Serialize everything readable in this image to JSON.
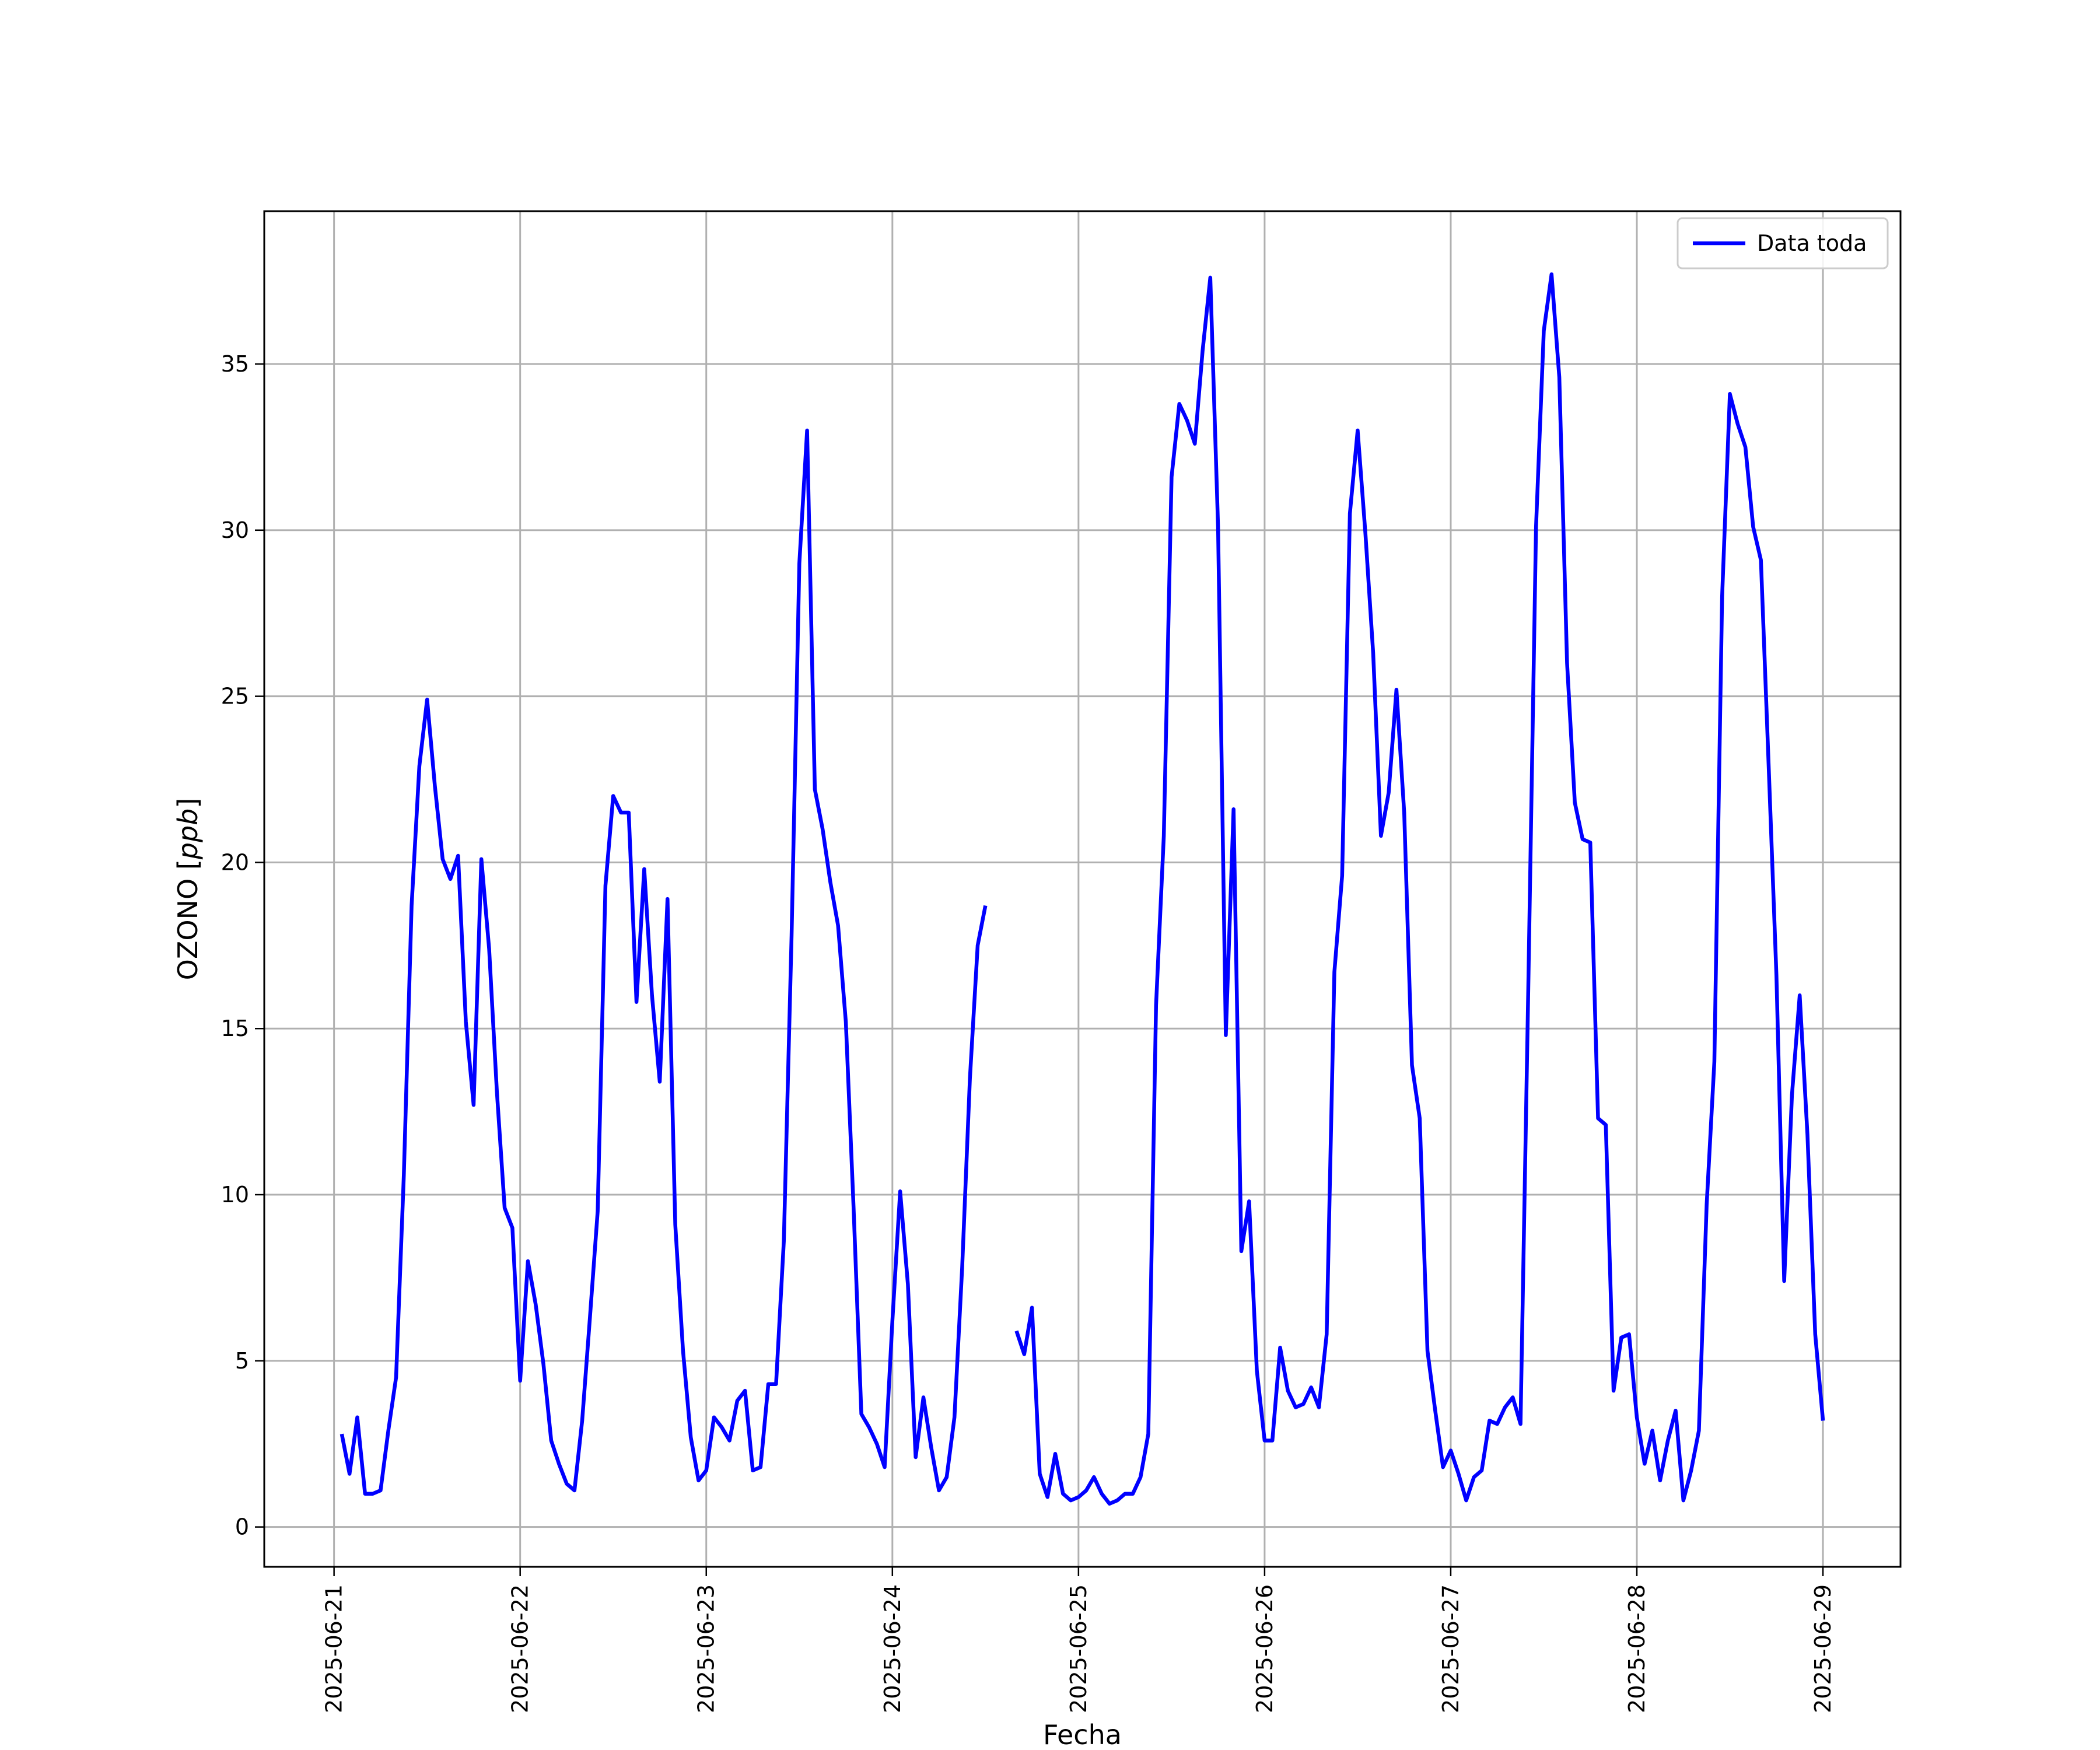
{
  "chart_data": {
    "type": "line",
    "title": "",
    "xlabel": "Fecha",
    "ylabel": "OZONO [ppb]",
    "ylabel_parts": {
      "prefix": "OZONO [",
      "unit": "ppb",
      "suffix": "]"
    },
    "x_ticks": [
      "2025-06-21",
      "2025-06-22",
      "2025-06-23",
      "2025-06-24",
      "2025-06-25",
      "2025-06-26",
      "2025-06-27",
      "2025-06-28",
      "2025-06-29"
    ],
    "y_ticks": [
      "0",
      "5",
      "10",
      "15",
      "20",
      "25",
      "30",
      "35"
    ],
    "xlim": [
      "2025-06-20T15:00",
      "2025-06-29T10:00"
    ],
    "ylim": [
      -1.2,
      39.6
    ],
    "grid": true,
    "legend_position": "top-right",
    "series_color": "#0000ff",
    "series": [
      {
        "name": "Data toda",
        "x": [
          "2025-06-21T01:00",
          "2025-06-21T02:00",
          "2025-06-21T03:00",
          "2025-06-21T04:00",
          "2025-06-21T05:00",
          "2025-06-21T06:00",
          "2025-06-21T07:00",
          "2025-06-21T08:00",
          "2025-06-21T09:00",
          "2025-06-21T10:00",
          "2025-06-21T11:00",
          "2025-06-21T12:00",
          "2025-06-21T13:00",
          "2025-06-21T14:00",
          "2025-06-21T15:00",
          "2025-06-21T16:00",
          "2025-06-21T17:00",
          "2025-06-21T18:00",
          "2025-06-21T19:00",
          "2025-06-21T20:00",
          "2025-06-21T21:00",
          "2025-06-21T22:00",
          "2025-06-21T23:00",
          "2025-06-22T00:00",
          "2025-06-22T01:00",
          "2025-06-22T02:00",
          "2025-06-22T03:00",
          "2025-06-22T04:00",
          "2025-06-22T05:00",
          "2025-06-22T06:00",
          "2025-06-22T07:00",
          "2025-06-22T08:00",
          "2025-06-22T09:00",
          "2025-06-22T10:00",
          "2025-06-22T11:00",
          "2025-06-22T12:00",
          "2025-06-22T13:00",
          "2025-06-22T14:00",
          "2025-06-22T15:00",
          "2025-06-22T16:00",
          "2025-06-22T17:00",
          "2025-06-22T18:00",
          "2025-06-22T19:00",
          "2025-06-22T20:00",
          "2025-06-22T21:00",
          "2025-06-22T22:00",
          "2025-06-22T23:00",
          "2025-06-23T00:00",
          "2025-06-23T01:00",
          "2025-06-23T02:00",
          "2025-06-23T03:00",
          "2025-06-23T04:00",
          "2025-06-23T05:00",
          "2025-06-23T06:00",
          "2025-06-23T07:00",
          "2025-06-23T08:00",
          "2025-06-23T09:00",
          "2025-06-23T10:00",
          "2025-06-23T11:00",
          "2025-06-23T12:00",
          "2025-06-23T13:00",
          "2025-06-23T14:00",
          "2025-06-23T15:00",
          "2025-06-23T16:00",
          "2025-06-23T17:00",
          "2025-06-23T18:00",
          "2025-06-23T19:00",
          "2025-06-23T20:00",
          "2025-06-23T21:00",
          "2025-06-23T22:00",
          "2025-06-23T23:00",
          "2025-06-24T00:00",
          "2025-06-24T01:00",
          "2025-06-24T02:00",
          "2025-06-24T03:00",
          "2025-06-24T04:00",
          "2025-06-24T05:00",
          "2025-06-24T06:00",
          "2025-06-24T07:00",
          "2025-06-24T08:00",
          "2025-06-24T09:00",
          "2025-06-24T10:00",
          "2025-06-24T11:00",
          "2025-06-24T12:00",
          "2025-06-24T16:00",
          "2025-06-24T17:00",
          "2025-06-24T18:00",
          "2025-06-24T19:00",
          "2025-06-24T20:00",
          "2025-06-24T21:00",
          "2025-06-24T22:00",
          "2025-06-24T23:00",
          "2025-06-25T00:00",
          "2025-06-25T01:00",
          "2025-06-25T02:00",
          "2025-06-25T03:00",
          "2025-06-25T04:00",
          "2025-06-25T05:00",
          "2025-06-25T06:00",
          "2025-06-25T07:00",
          "2025-06-25T08:00",
          "2025-06-25T09:00",
          "2025-06-25T10:00",
          "2025-06-25T11:00",
          "2025-06-25T12:00",
          "2025-06-25T13:00",
          "2025-06-25T14:00",
          "2025-06-25T15:00",
          "2025-06-25T16:00",
          "2025-06-25T17:00",
          "2025-06-25T18:00",
          "2025-06-25T19:00",
          "2025-06-25T20:00",
          "2025-06-25T21:00",
          "2025-06-25T22:00",
          "2025-06-25T23:00",
          "2025-06-26T00:00",
          "2025-06-26T01:00",
          "2025-06-26T02:00",
          "2025-06-26T03:00",
          "2025-06-26T04:00",
          "2025-06-26T05:00",
          "2025-06-26T06:00",
          "2025-06-26T07:00",
          "2025-06-26T08:00",
          "2025-06-26T09:00",
          "2025-06-26T10:00",
          "2025-06-26T11:00",
          "2025-06-26T12:00",
          "2025-06-26T13:00",
          "2025-06-26T14:00",
          "2025-06-26T15:00",
          "2025-06-26T16:00",
          "2025-06-26T17:00",
          "2025-06-26T18:00",
          "2025-06-26T19:00",
          "2025-06-26T20:00",
          "2025-06-26T21:00",
          "2025-06-26T22:00",
          "2025-06-26T23:00",
          "2025-06-27T00:00",
          "2025-06-27T01:00",
          "2025-06-27T02:00",
          "2025-06-27T03:00",
          "2025-06-27T04:00",
          "2025-06-27T05:00",
          "2025-06-27T06:00",
          "2025-06-27T07:00",
          "2025-06-27T08:00",
          "2025-06-27T09:00",
          "2025-06-27T10:00",
          "2025-06-27T11:00",
          "2025-06-27T12:00",
          "2025-06-27T13:00",
          "2025-06-27T14:00",
          "2025-06-27T15:00",
          "2025-06-27T16:00",
          "2025-06-27T17:00",
          "2025-06-27T18:00",
          "2025-06-27T19:00",
          "2025-06-27T20:00",
          "2025-06-27T21:00",
          "2025-06-27T22:00",
          "2025-06-27T23:00",
          "2025-06-28T00:00",
          "2025-06-28T01:00",
          "2025-06-28T02:00",
          "2025-06-28T03:00",
          "2025-06-28T04:00",
          "2025-06-28T05:00",
          "2025-06-28T06:00",
          "2025-06-28T07:00",
          "2025-06-28T08:00",
          "2025-06-28T09:00",
          "2025-06-28T10:00",
          "2025-06-28T11:00",
          "2025-06-28T12:00",
          "2025-06-28T13:00",
          "2025-06-28T14:00",
          "2025-06-28T15:00",
          "2025-06-28T16:00",
          "2025-06-28T17:00",
          "2025-06-28T18:00",
          "2025-06-28T19:00",
          "2025-06-28T20:00",
          "2025-06-28T21:00",
          "2025-06-28T22:00",
          "2025-06-28T23:00",
          "2025-06-29T00:00"
        ],
        "values": [
          2.8,
          1.6,
          3.3,
          1.0,
          1.0,
          1.1,
          2.9,
          4.5,
          10.6,
          18.7,
          22.9,
          24.9,
          22.3,
          20.1,
          19.5,
          20.2,
          15.2,
          12.7,
          20.1,
          17.4,
          13.1,
          9.6,
          9.0,
          4.4,
          8.0,
          6.7,
          4.9,
          2.6,
          1.9,
          1.3,
          1.1,
          3.2,
          6.3,
          9.5,
          19.3,
          22.0,
          21.5,
          21.5,
          15.8,
          19.8,
          16.0,
          13.4,
          18.9,
          9.1,
          5.3,
          2.7,
          1.4,
          1.7,
          3.3,
          3.0,
          2.6,
          3.8,
          4.1,
          1.7,
          1.8,
          4.3,
          4.3,
          8.6,
          17.8,
          29.0,
          33.0,
          22.2,
          21.0,
          19.4,
          18.1,
          15.2,
          9.6,
          3.4,
          3.0,
          2.5,
          1.8,
          6.2,
          10.1,
          7.3,
          2.1,
          3.9,
          2.4,
          1.1,
          1.5,
          3.3,
          7.8,
          13.5,
          17.5,
          18.7,
          5.9,
          5.2,
          6.6,
          1.6,
          0.9,
          2.2,
          1.0,
          0.8,
          0.9,
          1.1,
          1.5,
          1.0,
          0.7,
          0.8,
          1.0,
          1.0,
          1.5,
          2.8,
          15.7,
          20.8,
          31.6,
          33.8,
          33.3,
          32.6,
          35.4,
          37.6,
          30.1,
          14.8,
          21.6,
          8.3,
          9.8,
          4.7,
          2.6,
          2.6,
          5.4,
          4.1,
          3.6,
          3.7,
          4.2,
          3.6,
          5.8,
          16.7,
          19.6,
          30.5,
          33.0,
          29.9,
          26.3,
          20.8,
          22.1,
          25.2,
          21.5,
          13.9,
          12.3,
          5.3,
          3.5,
          1.8,
          2.3,
          1.6,
          0.8,
          1.5,
          1.7,
          3.2,
          3.1,
          3.6,
          3.9,
          3.1,
          16.2,
          30.1,
          36.0,
          37.7,
          34.6,
          26.0,
          21.8,
          20.7,
          20.6,
          12.3,
          12.1,
          4.1,
          5.7,
          5.8,
          3.3,
          1.9,
          2.9,
          1.4,
          2.6,
          3.5,
          0.8,
          1.7,
          2.9,
          9.7,
          14.0,
          28.0,
          34.1,
          33.2,
          32.5,
          30.1,
          29.1,
          22.9,
          16.6,
          7.4,
          13.0,
          16.0,
          11.8,
          5.8,
          3.2
        ]
      }
    ]
  }
}
